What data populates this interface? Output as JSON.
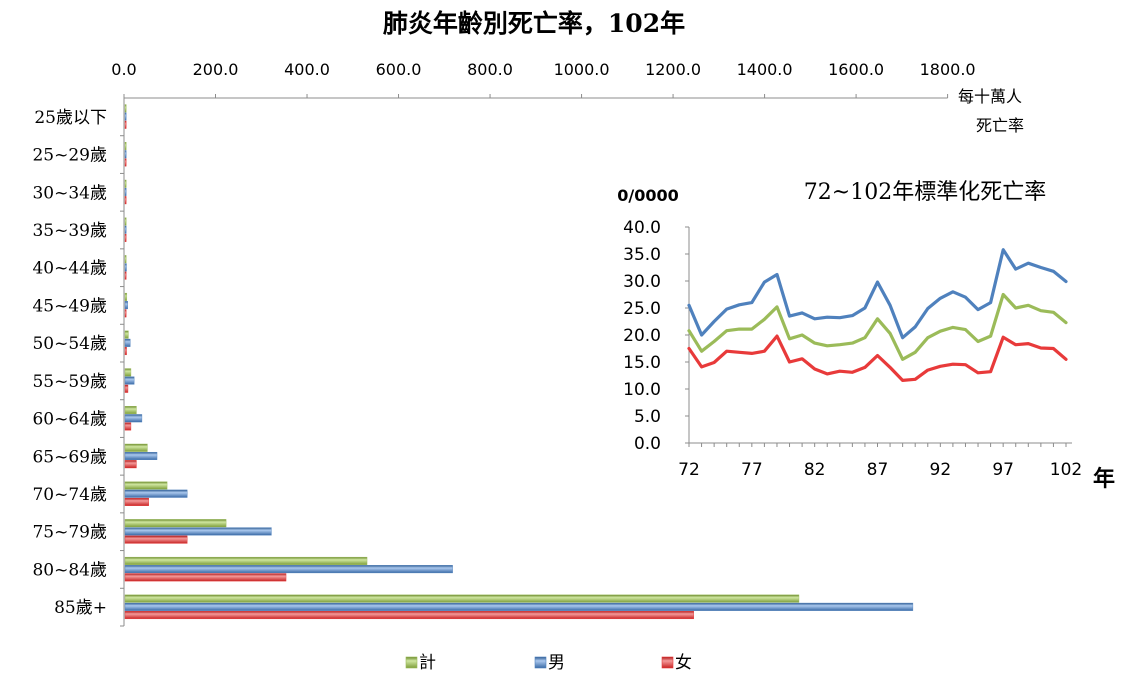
{
  "chart_data": [
    {
      "type": "bar",
      "orientation": "horizontal",
      "title": "肺炎年齡別死亡率，102年",
      "unit_label": [
        "每十萬人",
        "死亡率"
      ],
      "xlim": [
        0,
        1800
      ],
      "ticks": [
        "0.0",
        "200.0",
        "400.0",
        "600.0",
        "800.0",
        "1000.0",
        "1200.0",
        "1400.0",
        "1600.0",
        "1800.0"
      ],
      "tick_values": [
        0,
        200,
        400,
        600,
        800,
        1000,
        1200,
        1400,
        1600,
        1800
      ],
      "categories": [
        "25歲以下",
        "25~29歲",
        "30~34歲",
        "35~39歲",
        "40~44歲",
        "45~49歲",
        "50~54歲",
        "55~59歲",
        "60~64歲",
        "65~69歲",
        "70~74歲",
        "75~79歲",
        "80~84歲",
        "85歲+"
      ],
      "series": [
        {
          "name": "計",
          "color": "#9BBB59",
          "values": [
            0.3,
            0.5,
            0.6,
            1.2,
            2.2,
            4.0,
            7.5,
            13.0,
            25.0,
            49.0,
            92.0,
            221.0,
            529.0,
            1473.0
          ]
        },
        {
          "name": "男",
          "color": "#4F81BD",
          "values": [
            0.4,
            0.7,
            0.9,
            1.7,
            3.3,
            6.0,
            11.5,
            20.0,
            37.0,
            70.0,
            136.0,
            320.0,
            716.0,
            1722.0
          ]
        },
        {
          "name": "女",
          "color": "#E83A3A",
          "values": [
            0.2,
            0.3,
            0.4,
            0.7,
            1.2,
            2.0,
            3.5,
            6.5,
            13.0,
            25.0,
            52.0,
            136.0,
            352.0,
            1243.0
          ]
        }
      ],
      "legend_position": "bottom"
    },
    {
      "type": "line",
      "title": "72~102年標準化死亡率",
      "ylabel": "0/0000",
      "xlabel": "年",
      "ylim": [
        0,
        40
      ],
      "yticks": [
        "0.0",
        "5.0",
        "10.0",
        "15.0",
        "20.0",
        "25.0",
        "30.0",
        "35.0",
        "40.0"
      ],
      "ytick_values": [
        0,
        5,
        10,
        15,
        20,
        25,
        30,
        35,
        40
      ],
      "xticks": [
        "72",
        "77",
        "82",
        "87",
        "92",
        "97",
        "102"
      ],
      "xtick_values": [
        72,
        77,
        82,
        87,
        92,
        97,
        102
      ],
      "x": [
        72,
        73,
        74,
        75,
        76,
        77,
        78,
        79,
        80,
        81,
        82,
        83,
        84,
        85,
        86,
        87,
        88,
        89,
        90,
        91,
        92,
        93,
        94,
        95,
        96,
        97,
        98,
        99,
        100,
        101,
        102
      ],
      "series": [
        {
          "name": "男",
          "color": "#4F81BD",
          "values": [
            25.5,
            20.0,
            22.5,
            24.8,
            25.6,
            26.0,
            29.8,
            31.2,
            23.5,
            24.1,
            23.0,
            23.3,
            23.2,
            23.6,
            25.0,
            29.8,
            25.5,
            19.5,
            21.5,
            24.9,
            26.8,
            28.0,
            27.0,
            24.7,
            26.0,
            35.8,
            32.2,
            33.3,
            32.5,
            31.8,
            29.9
          ]
        },
        {
          "name": "計",
          "color": "#9BBB59",
          "values": [
            20.8,
            17.0,
            18.8,
            20.8,
            21.1,
            21.1,
            22.9,
            25.2,
            19.3,
            20.0,
            18.5,
            18.0,
            18.2,
            18.5,
            19.5,
            23.0,
            20.3,
            15.5,
            16.8,
            19.5,
            20.7,
            21.4,
            21.0,
            18.8,
            19.8,
            27.5,
            25.0,
            25.5,
            24.5,
            24.2,
            22.3
          ]
        },
        {
          "name": "女",
          "color": "#E83A3A",
          "values": [
            17.5,
            14.1,
            14.9,
            17.0,
            16.8,
            16.6,
            17.0,
            19.8,
            15.0,
            15.6,
            13.7,
            12.8,
            13.3,
            13.1,
            14.0,
            16.2,
            14.0,
            11.6,
            11.8,
            13.5,
            14.2,
            14.6,
            14.5,
            13.0,
            13.2,
            19.6,
            18.2,
            18.4,
            17.6,
            17.5,
            15.5
          ]
        }
      ]
    }
  ]
}
